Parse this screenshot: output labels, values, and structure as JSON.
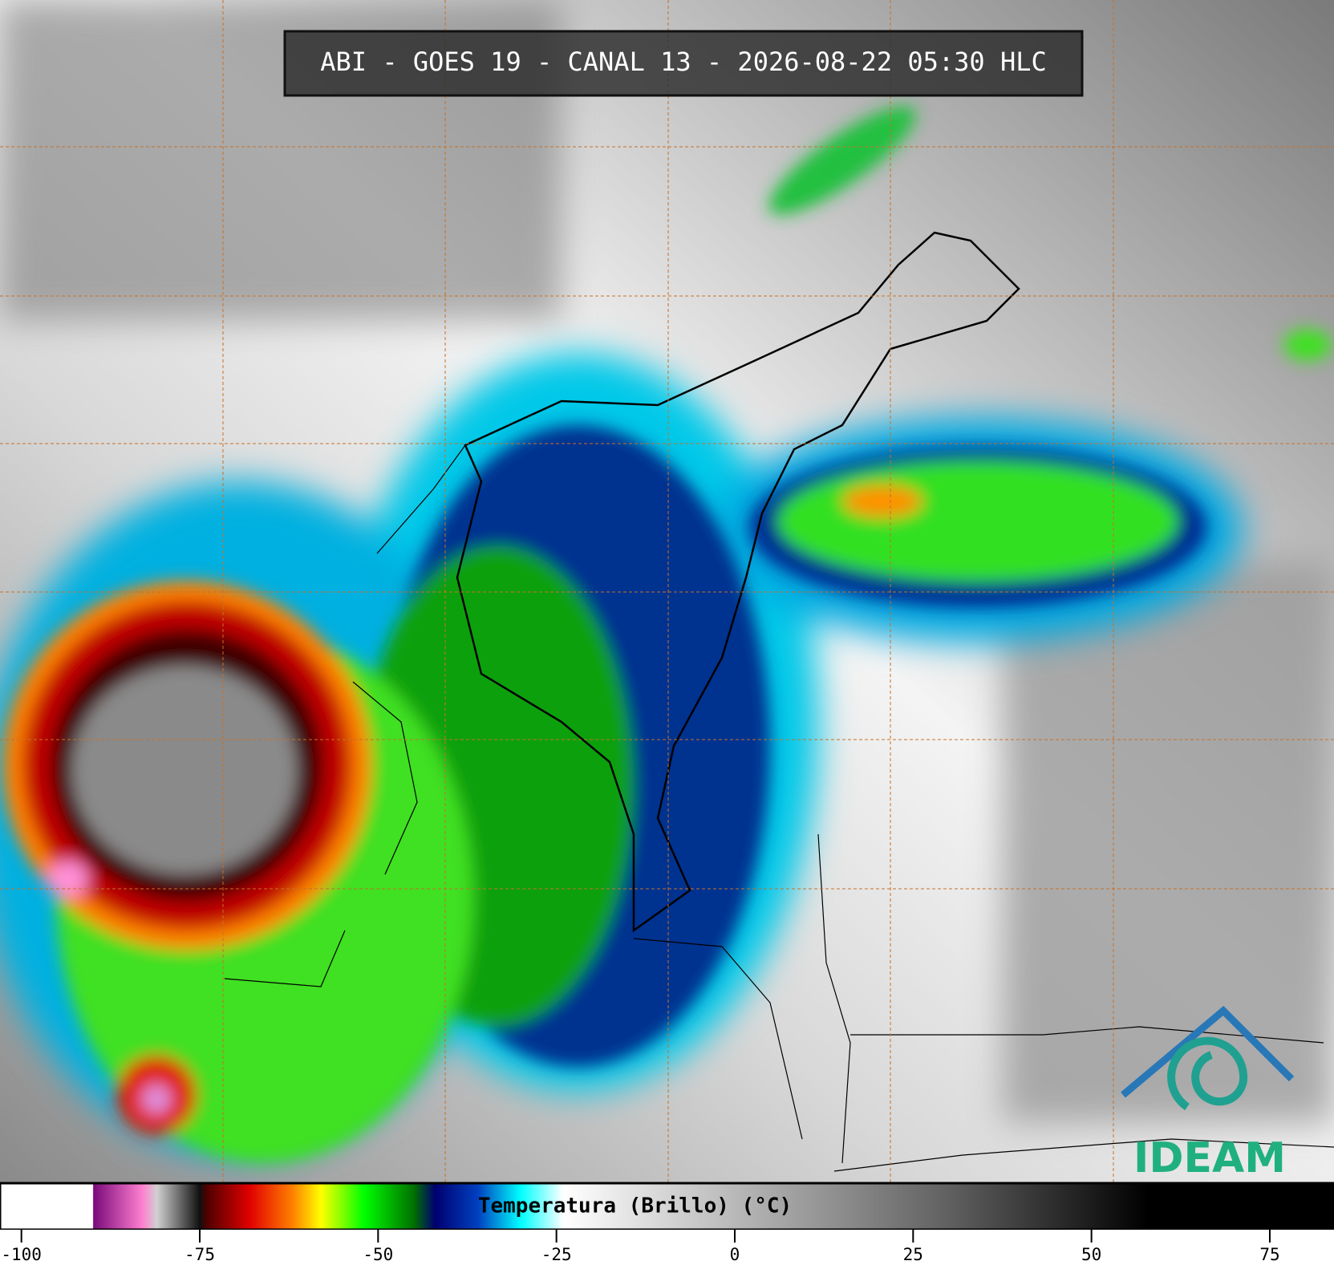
{
  "title": "ABI - GOES 19 - CANAL 13 - 2026-08-22 05:30 HLC",
  "colorbar": {
    "label": "Temperatura (Brillo) (°C)",
    "lim": [
      -103,
      84
    ],
    "ticks": [
      -100,
      -75,
      -50,
      -25,
      0,
      25,
      50,
      75
    ],
    "stops": [
      {
        "value": -90,
        "color": "#ffffff"
      },
      {
        "value": -89.9,
        "color": "#7a0a7a"
      },
      {
        "value": -83,
        "color": "#ff80d0"
      },
      {
        "value": -81,
        "color": "#d0d0d0"
      },
      {
        "value": -75,
        "color": "#101010"
      },
      {
        "value": -74,
        "color": "#500000"
      },
      {
        "value": -68,
        "color": "#e00000"
      },
      {
        "value": -62,
        "color": "#ff8000"
      },
      {
        "value": -58,
        "color": "#ffff00"
      },
      {
        "value": -52,
        "color": "#00ff00"
      },
      {
        "value": -45,
        "color": "#007000"
      },
      {
        "value": -42,
        "color": "#000070"
      },
      {
        "value": -36,
        "color": "#0040c0"
      },
      {
        "value": -30,
        "color": "#00ffff"
      },
      {
        "value": -24,
        "color": "#ffffff"
      },
      {
        "value": 30,
        "color": "#606060"
      },
      {
        "value": 58,
        "color": "#000000"
      }
    ]
  },
  "logo": {
    "text": "IDEAM"
  }
}
